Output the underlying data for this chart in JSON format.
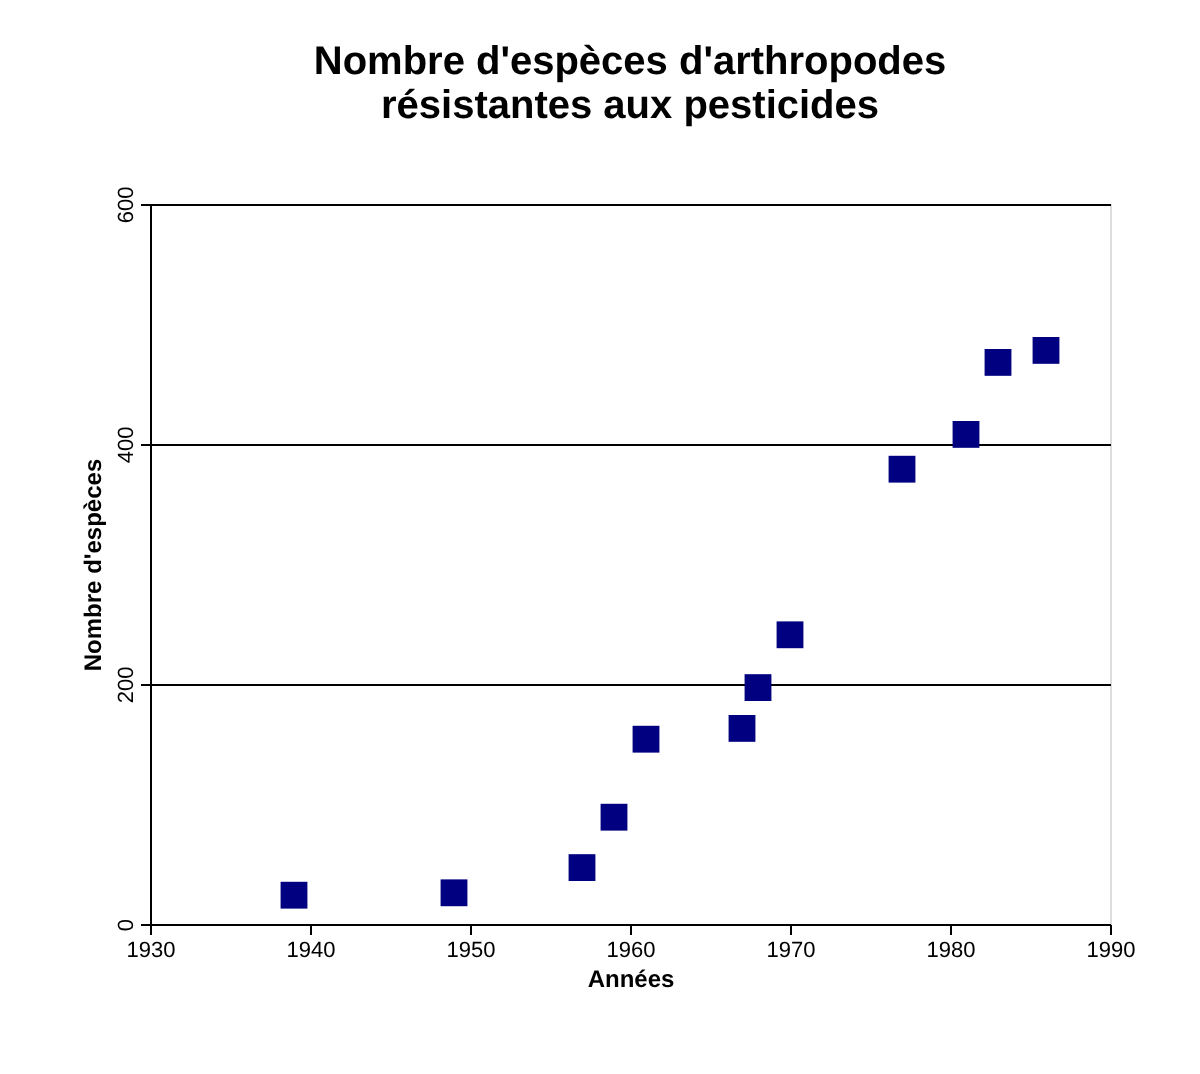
{
  "chart_data": {
    "type": "scatter",
    "title": "Nombre d'espèces d'arthropodes\nrésistantes aux pesticides",
    "xlabel": "Années",
    "ylabel": "Nombre d'espèces",
    "x": [
      1939,
      1949,
      1957,
      1959,
      1961,
      1967,
      1968,
      1970,
      1977,
      1981,
      1983,
      1986
    ],
    "series": [
      {
        "color": "#000080",
        "values": [
          24,
          26,
          47,
          89,
          154,
          163,
          197,
          241,
          379,
          408,
          468,
          478
        ]
      }
    ],
    "xlim": [
      1930,
      1990
    ],
    "xticks": [
      1930,
      1940,
      1950,
      1960,
      1970,
      1980,
      1990
    ],
    "ylim": [
      0,
      600
    ],
    "yticks": [
      0,
      200,
      400,
      600
    ],
    "grid": "y",
    "marker": "square"
  }
}
